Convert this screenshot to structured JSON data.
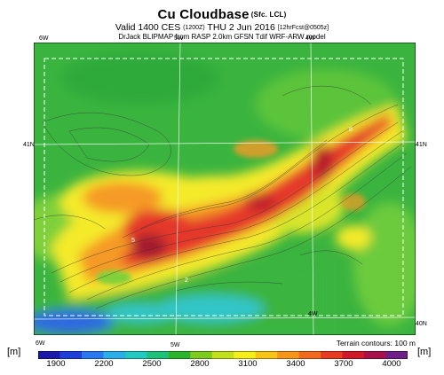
{
  "header": {
    "title": "Cu Cloudbase",
    "title_suffix": "(Sfc. LCL)",
    "valid": "Valid 1400 CES",
    "valid_z": "(1200Z)",
    "date": "THU 2 Jun 2016",
    "forecast": "[12hrFcst@0505z]",
    "model_line": "DrJack BLIPMAP from RASP 2.0km GFSN Tdif WRF-ARW model"
  },
  "axes": {
    "top_lon": [
      "6W",
      "5W",
      "4W"
    ],
    "bottom_lon": [
      "6W",
      "5W"
    ],
    "lat_left": [
      "41N"
    ],
    "lat_right": [
      "41N",
      "40N"
    ],
    "inner_lon": [
      "4W"
    ]
  },
  "terrain_note": "Terrain contours: 100 m",
  "colorbar": {
    "unit": "[m]",
    "ticks": [
      "1900",
      "2200",
      "2500",
      "2800",
      "3100",
      "3400",
      "3700",
      "4000"
    ],
    "colors": [
      "#1a1aa8",
      "#1f3fd8",
      "#2a78f0",
      "#2aaeea",
      "#22c9c0",
      "#1fc07a",
      "#2db42d",
      "#7ccc20",
      "#c2e01c",
      "#f4ee1a",
      "#f8c418",
      "#f7961a",
      "#f36a1e",
      "#e83a22",
      "#d01828",
      "#a8104a",
      "#6e1e86"
    ]
  },
  "map": {
    "labels": [
      "2",
      "5",
      "8"
    ],
    "colors": {
      "green": "#3bb43f",
      "light_green": "#7fd03a",
      "yellow": "#f4ea2a",
      "orange": "#f59a25",
      "red": "#e4392a",
      "dark_red": "#a31a2e",
      "blue": "#2f6be0",
      "cyan": "#31c6c8"
    }
  }
}
